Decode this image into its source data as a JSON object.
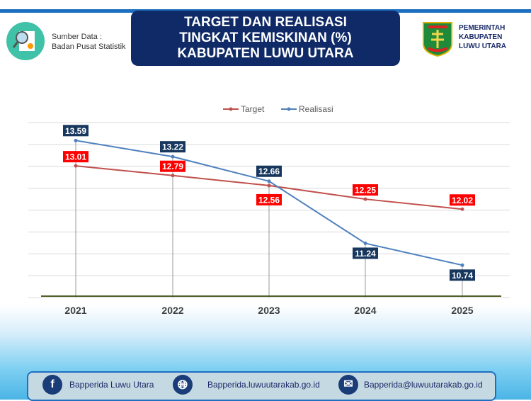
{
  "header": {
    "source_label": "Sumber Data :",
    "source_name": "Badan Pusat Statistik",
    "title_lines": [
      "TARGET DAN REALISASI",
      "TINGKAT KEMISKINAN (%)",
      "KABUPATEN LUWU UTARA"
    ],
    "gov_lines": [
      "PEMERINTAH",
      "KABUPATEN",
      "LUWU UTARA"
    ]
  },
  "chart_data": {
    "type": "line",
    "categories": [
      "2021",
      "2022",
      "2023",
      "2024",
      "2025"
    ],
    "ylim": [
      10,
      14
    ],
    "grid": true,
    "legend": "top",
    "series": [
      {
        "name": "Target",
        "color": "#c0504d",
        "label_bg": "#ff0000",
        "values": [
          13.01,
          12.79,
          12.56,
          12.25,
          12.02
        ]
      },
      {
        "name": "Realisasi",
        "color": "#4f81bd",
        "label_bg": "#17375e",
        "values": [
          13.59,
          13.22,
          12.66,
          11.24,
          10.74
        ]
      }
    ]
  },
  "footer": {
    "facebook": "Bapperida Luwu Utara",
    "website": "Bapperida.luwuutarakab.go.id",
    "email": "Bapperida@luwuutarakab.go.id"
  },
  "colors": {
    "title_bg": "#0f2a66",
    "accent": "#1e6fc0"
  }
}
